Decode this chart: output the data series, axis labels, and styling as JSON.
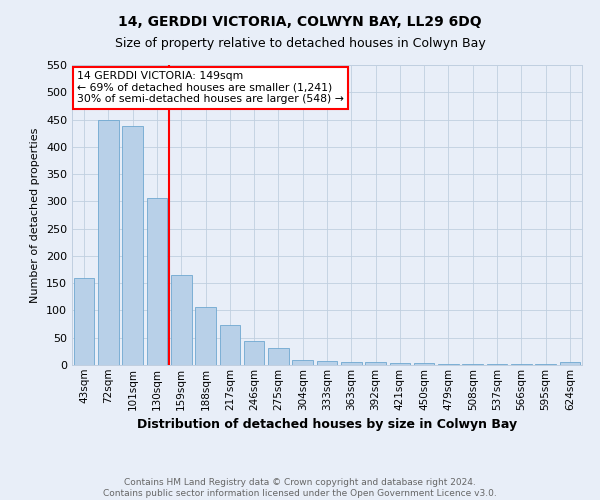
{
  "title": "14, GERDDI VICTORIA, COLWYN BAY, LL29 6DQ",
  "subtitle": "Size of property relative to detached houses in Colwyn Bay",
  "xlabel": "Distribution of detached houses by size in Colwyn Bay",
  "ylabel": "Number of detached properties",
  "footnote1": "Contains HM Land Registry data © Crown copyright and database right 2024.",
  "footnote2": "Contains public sector information licensed under the Open Government Licence v3.0.",
  "categories": [
    "43sqm",
    "72sqm",
    "101sqm",
    "130sqm",
    "159sqm",
    "188sqm",
    "217sqm",
    "246sqm",
    "275sqm",
    "304sqm",
    "333sqm",
    "363sqm",
    "392sqm",
    "421sqm",
    "450sqm",
    "479sqm",
    "508sqm",
    "537sqm",
    "566sqm",
    "595sqm",
    "624sqm"
  ],
  "values": [
    160,
    450,
    438,
    307,
    165,
    107,
    73,
    44,
    32,
    10,
    8,
    6,
    5,
    4,
    3,
    2,
    2,
    2,
    1,
    1,
    5
  ],
  "bar_color": "#b8d0e8",
  "bar_edge_color": "#6fa8d0",
  "annotation_text_line1": "14 GERDDI VICTORIA: 149sqm",
  "annotation_text_line2": "← 69% of detached houses are smaller (1,241)",
  "annotation_text_line3": "30% of semi-detached houses are larger (548) →",
  "annotation_box_facecolor": "white",
  "annotation_box_edgecolor": "red",
  "vline_color": "red",
  "vline_x_index": 3.5,
  "ylim": [
    0,
    550
  ],
  "yticks": [
    0,
    50,
    100,
    150,
    200,
    250,
    300,
    350,
    400,
    450,
    500,
    550
  ],
  "background_color": "#e8eef8",
  "grid_color": "#c0cfe0",
  "title_fontsize": 10,
  "subtitle_fontsize": 9,
  "xlabel_fontsize": 9,
  "ylabel_fontsize": 8,
  "tick_fontsize": 7.5,
  "footnote_fontsize": 6.5,
  "footnote_color": "#666666"
}
